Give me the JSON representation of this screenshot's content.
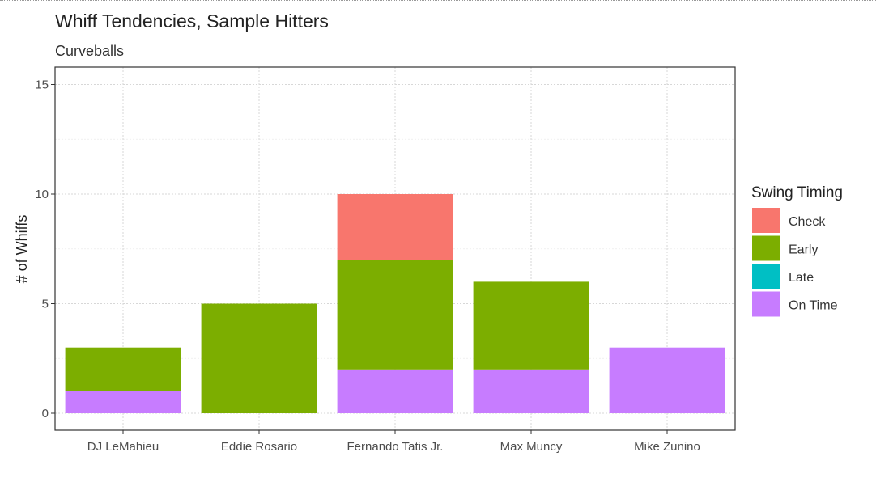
{
  "chart_data": {
    "type": "bar",
    "stacked": true,
    "title": "Whiff Tendencies, Sample Hitters",
    "subtitle": "Curveballs",
    "xlabel": "",
    "ylabel": "# of Whiffs",
    "categories": [
      "DJ LeMahieu",
      "Eddie Rosario",
      "Fernando Tatis Jr.",
      "Max Muncy",
      "Mike Zunino"
    ],
    "ylim": [
      0,
      15
    ],
    "yticks": [
      0,
      5,
      10,
      15
    ],
    "grid": true,
    "legend": {
      "title": "Swing Timing",
      "position": "right"
    },
    "series": [
      {
        "name": "Check",
        "color": "#F8766D",
        "values": [
          0,
          0,
          3,
          0,
          0
        ]
      },
      {
        "name": "Early",
        "color": "#7CAE00",
        "values": [
          2,
          5,
          5,
          4,
          0
        ]
      },
      {
        "name": "Late",
        "color": "#00BFC4",
        "values": [
          0,
          0,
          0,
          0,
          0
        ]
      },
      {
        "name": "On Time",
        "color": "#C77CFF",
        "values": [
          1,
          0,
          2,
          2,
          3
        ]
      }
    ],
    "stack_order_bottom_to_top": [
      "On Time",
      "Late",
      "Early",
      "Check"
    ]
  }
}
